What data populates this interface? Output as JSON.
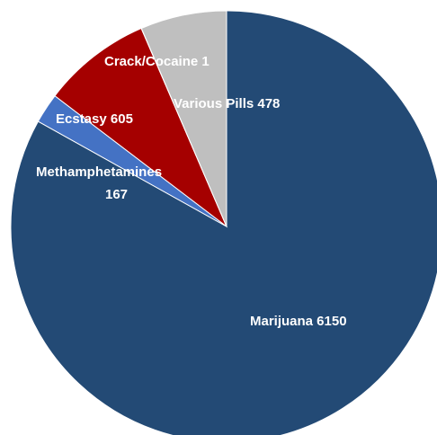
{
  "chart_data": {
    "type": "pie",
    "title": "",
    "slices": [
      {
        "label": "Marijuana",
        "value": 6150,
        "color": "#234A75",
        "data_label_lines": [
          "Marijuana 6150"
        ]
      },
      {
        "label": "Methamphetamines",
        "value": 167,
        "color": "#4472C4",
        "data_label_lines": [
          "Methamphetamines",
          "167"
        ]
      },
      {
        "label": "Ecstasy",
        "value": 605,
        "color": "#A50000",
        "data_label_lines": [
          "Ecstasy 605"
        ]
      },
      {
        "label": "Crack/Cocaine",
        "value": 1,
        "color": "#8FAADC",
        "data_label_lines": [
          "Crack/Cocaine 1"
        ]
      },
      {
        "label": "Various Pills",
        "value": 478,
        "color": "#BFBFBF",
        "data_label_lines": [
          "Various Pills 478"
        ]
      }
    ],
    "start_angle_deg": 0,
    "direction": "clockwise",
    "legend": "none"
  }
}
